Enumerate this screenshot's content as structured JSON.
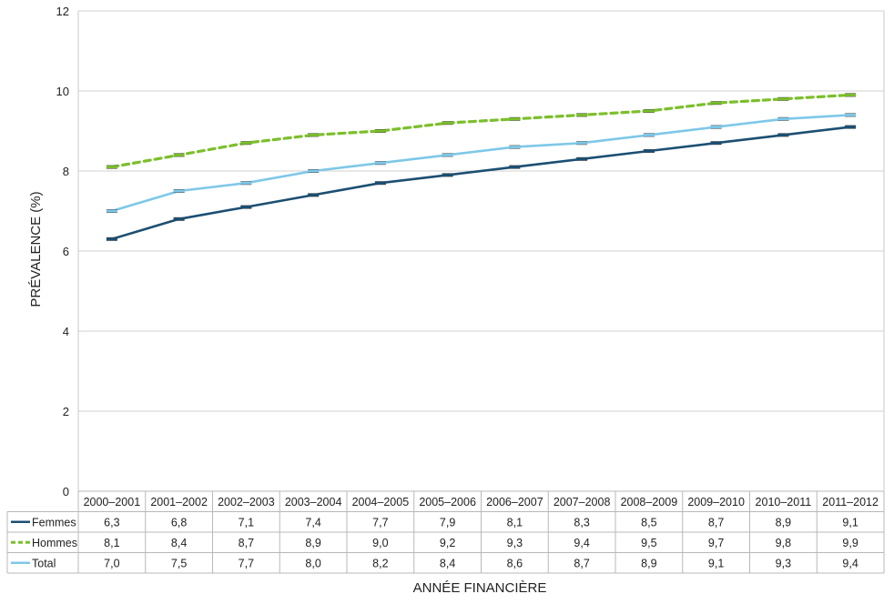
{
  "chart_data": {
    "type": "line",
    "ylabel": "PRÉVALENCE (%)",
    "xlabel": "ANNÉE FINANCIÈRE",
    "ylim": [
      0,
      12
    ],
    "yticks": [
      "0",
      "2",
      "4",
      "6",
      "8",
      "10",
      "12"
    ],
    "grid": true,
    "legend_placement": "data table below plot",
    "categories": [
      "2000–2001",
      "2001–2002",
      "2002–2003",
      "2003–2004",
      "2004–2005",
      "2005–2006",
      "2006–2007",
      "2007–2008",
      "2008–2009",
      "2009–2010",
      "2010–2011",
      "2011–2012"
    ],
    "series": [
      {
        "name": "Femmes",
        "color": "#1b4f72",
        "dash": "solid",
        "values": [
          6.3,
          6.8,
          7.1,
          7.4,
          7.7,
          7.9,
          8.1,
          8.3,
          8.5,
          8.7,
          8.9,
          9.1
        ],
        "labels": [
          "6,3",
          "6,8",
          "7,1",
          "7,4",
          "7,7",
          "7,9",
          "8,1",
          "8,3",
          "8,5",
          "8,7",
          "8,9",
          "9,1"
        ]
      },
      {
        "name": "Hommes",
        "color": "#7bbf2a",
        "dash": "dashed",
        "values": [
          8.1,
          8.4,
          8.7,
          8.9,
          9.0,
          9.2,
          9.3,
          9.4,
          9.5,
          9.7,
          9.8,
          9.9
        ],
        "labels": [
          "8,1",
          "8,4",
          "8,7",
          "8,9",
          "9,0",
          "9,2",
          "9,3",
          "9,4",
          "9,5",
          "9,7",
          "9,8",
          "9,9"
        ]
      },
      {
        "name": "Total",
        "color": "#7ec8e8",
        "dash": "solid",
        "values": [
          7.0,
          7.5,
          7.7,
          8.0,
          8.2,
          8.4,
          8.6,
          8.7,
          8.9,
          9.1,
          9.3,
          9.4
        ],
        "labels": [
          "7,0",
          "7,5",
          "7,7",
          "8,0",
          "8,2",
          "8,4",
          "8,6",
          "8,7",
          "8,9",
          "9,1",
          "9,3",
          "9,4"
        ]
      }
    ]
  }
}
